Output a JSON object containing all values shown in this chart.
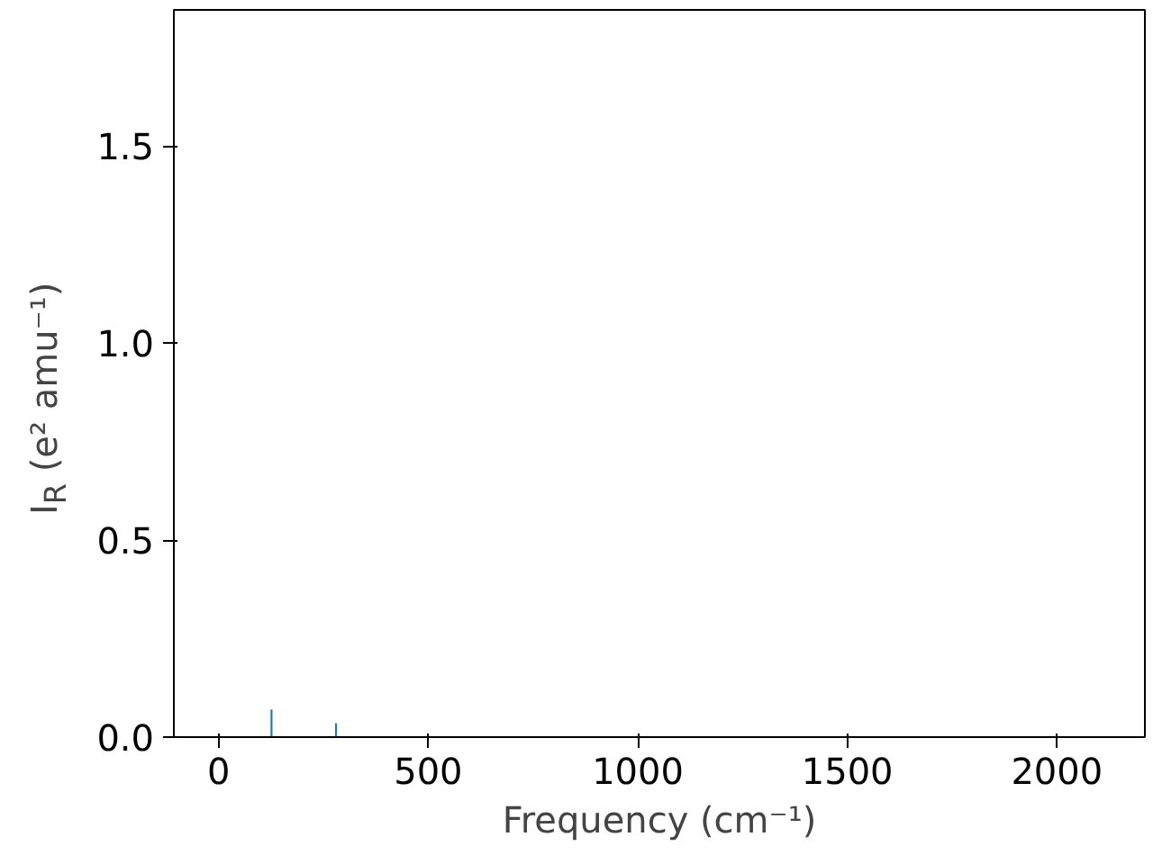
{
  "chart_data": {
    "type": "bar",
    "x": [
      126,
      280
    ],
    "xlabel": "Frequency (cm⁻¹)",
    "ylabel": "I$_{R}$ (e² amu⁻¹)",
    "series": [
      {
        "color": "#1f77b4",
        "values": [
          0.07,
          0.035
        ]
      }
    ],
    "xlim": [
      -107,
      2210
    ],
    "ylim": [
      0,
      1.845
    ],
    "xticks": [
      0,
      500,
      1000,
      1500,
      2000
    ],
    "yticks": [
      {
        "value": 0,
        "label": "0.0"
      },
      0.5,
      {
        "value": 1,
        "label": "1.0"
      },
      1.5
    ],
    "grid": false
  }
}
